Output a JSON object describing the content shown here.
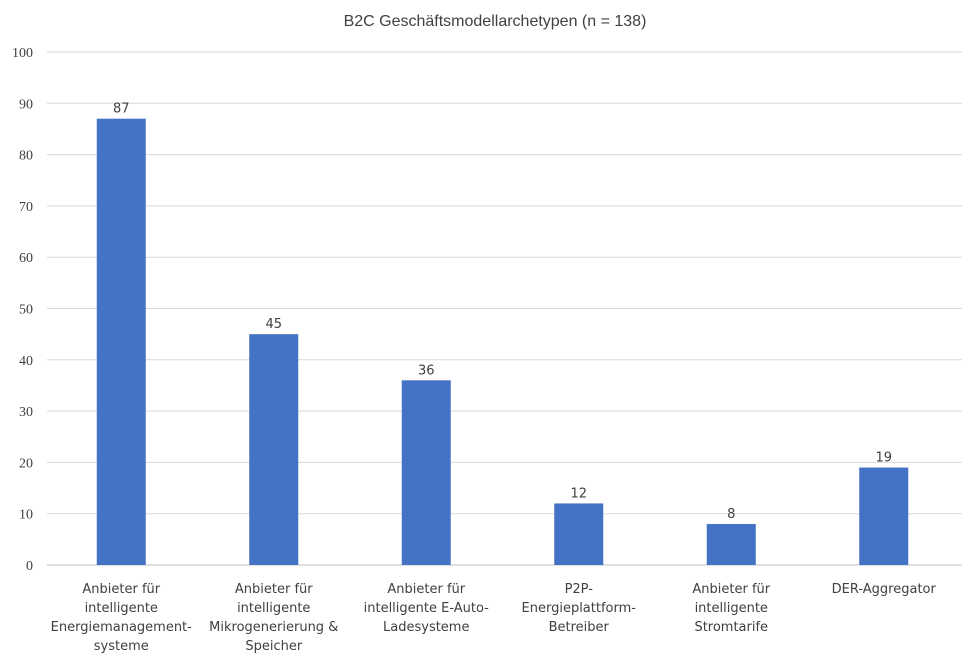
{
  "chart_data": {
    "type": "bar",
    "title": "B2C Geschäftsmodellarchetypen (n = 138)",
    "categories": [
      [
        "Anbieter für",
        "intelligente",
        "Energiemanagement-",
        "systeme"
      ],
      [
        "Anbieter für",
        "intelligente",
        "Mikrogenerierung &",
        "Speicher"
      ],
      [
        "Anbieter für",
        "intelligente E-Auto-",
        "Ladesysteme"
      ],
      [
        "P2P-",
        "Energieplattform-",
        "Betreiber"
      ],
      [
        "Anbieter für",
        "intelligente",
        "Stromtarife"
      ],
      [
        "DER-Aggregator"
      ]
    ],
    "values": [
      87,
      45,
      36,
      12,
      8,
      19
    ],
    "ylim": [
      0,
      100
    ],
    "yticks": [
      0,
      10,
      20,
      30,
      40,
      50,
      60,
      70,
      80,
      90,
      100
    ],
    "grid": true,
    "legend": "none",
    "bar_color": "#4472C4"
  }
}
